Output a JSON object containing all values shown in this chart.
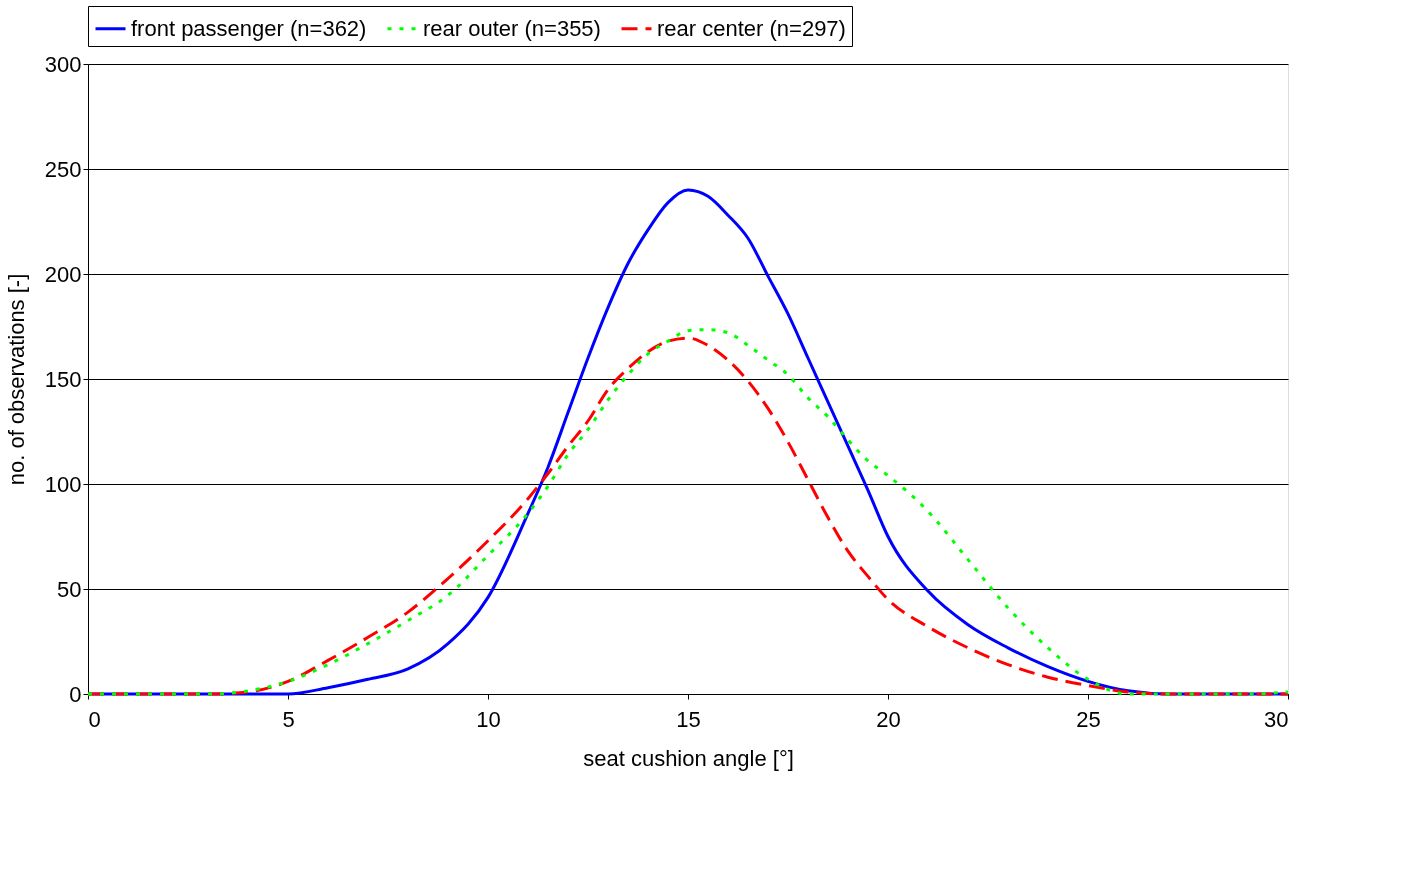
{
  "chart_data": {
    "type": "line",
    "xlabel": "seat cushion angle [°]",
    "ylabel": "no. of observations [-]",
    "x": [
      0,
      1,
      2,
      3,
      4,
      5,
      6,
      7,
      8,
      9,
      10,
      11,
      11.5,
      12,
      12.5,
      13,
      13.5,
      14,
      14.5,
      15,
      15.5,
      16,
      16.5,
      17,
      17.5,
      18,
      18.5,
      19,
      19.5,
      20,
      21,
      22,
      23,
      24,
      25,
      26,
      27,
      28,
      29,
      30
    ],
    "series": [
      {
        "name": "front passenger (n=362)",
        "color": "#0000ff",
        "line_style": "solid",
        "values": [
          0,
          0,
          0,
          0,
          0,
          0,
          3,
          7,
          12,
          24,
          46,
          86,
          108,
          134,
          160,
          184,
          205,
          221,
          234,
          240,
          237,
          228,
          217,
          199,
          181,
          160,
          139,
          118,
          97,
          75,
          49,
          33,
          22,
          13,
          6,
          1.5,
          0,
          0,
          0,
          0
        ]
      },
      {
        "name": "rear outer (n=355)",
        "color": "#00ff00",
        "line_style": "dotted",
        "values": [
          0,
          0,
          0,
          0,
          1.5,
          6,
          14,
          24,
          35,
          47,
          66,
          86,
          99,
          114,
          126,
          140,
          152,
          162,
          168,
          173,
          173.5,
          172,
          166,
          159,
          152,
          141,
          132,
          121,
          111,
          104,
          87,
          64,
          41,
          22,
          7,
          0,
          0,
          0,
          0,
          1
        ]
      },
      {
        "name": "rear center (n=297)",
        "color": "#ff0000",
        "line_style": "dashed",
        "values": [
          0,
          0,
          0,
          0,
          1,
          6,
          16,
          27,
          39,
          55,
          73,
          93,
          105,
          118,
          130,
          145,
          155,
          163,
          168,
          169.5,
          166,
          159,
          149,
          136,
          120,
          102,
          84,
          68,
          56,
          45,
          32,
          22,
          14,
          8,
          4,
          1,
          0,
          0,
          0,
          0
        ]
      }
    ],
    "xlim": [
      0,
      30
    ],
    "xticks": [
      0,
      5,
      10,
      15,
      20,
      25,
      30
    ],
    "ylim": [
      0,
      300
    ],
    "yticks": [
      0,
      50,
      100,
      150,
      200,
      250,
      300
    ],
    "grid": "y",
    "legend": "top",
    "marker": "none"
  }
}
